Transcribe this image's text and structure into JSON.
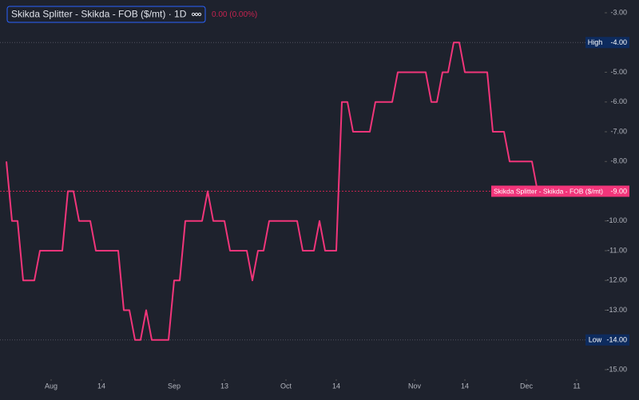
{
  "chart_data": {
    "type": "line",
    "title": "Skikda Splitter - Skikda - FOB ($/mt) · 1D",
    "change": "0.00 (0.00%)",
    "x": [
      0,
      1,
      2,
      3,
      4,
      5,
      6,
      7,
      8,
      9,
      10,
      11,
      12,
      13,
      14,
      15,
      16,
      17,
      18,
      19,
      20,
      21,
      22,
      23,
      24,
      25,
      26,
      27,
      28,
      29,
      30,
      31,
      32,
      33,
      34,
      35,
      36,
      37,
      38,
      39,
      40,
      41,
      42,
      43,
      44,
      45,
      46,
      47,
      48,
      49,
      50,
      51,
      52,
      53,
      54,
      55,
      56,
      57,
      58,
      59,
      60,
      61,
      62,
      63,
      64,
      65,
      66,
      67,
      68,
      69,
      70,
      71,
      72,
      73,
      74,
      75,
      76,
      77,
      78,
      79,
      80,
      81,
      82,
      83,
      84,
      85,
      86,
      87,
      88,
      89,
      90,
      91,
      92,
      93,
      94,
      95
    ],
    "series": [
      {
        "name": "Skikda Splitter - Skikda - FOB ($/mt)",
        "color": "#f2357a",
        "values": [
          -8,
          -10,
          -10,
          -12,
          -12,
          -12,
          -11,
          -11,
          -11,
          -11,
          -11,
          -9,
          -9,
          -10,
          -10,
          -10,
          -11,
          -11,
          -11,
          -11,
          -11,
          -13,
          -13,
          -14,
          -14,
          -13,
          -14,
          -14,
          -14,
          -14,
          -12,
          -12,
          -10,
          -10,
          -10,
          -10,
          -9,
          -10,
          -10,
          -10,
          -11,
          -11,
          -11,
          -11,
          -12,
          -11,
          -11,
          -10,
          -10,
          -10,
          -10,
          -10,
          -10,
          -11,
          -11,
          -11,
          -10,
          -11,
          -11,
          -11,
          -6,
          -6,
          -7,
          -7,
          -7,
          -7,
          -6,
          -6,
          -6,
          -6,
          -5,
          -5,
          -5,
          -5,
          -5,
          -5,
          -6,
          -6,
          -5,
          -5,
          -4,
          -4,
          -5,
          -5,
          -5,
          -5,
          -5,
          -7,
          -7,
          -7,
          -8,
          -8,
          -8,
          -8,
          -8,
          -9
        ]
      }
    ],
    "xlim": [
      0,
      107
    ],
    "xticks": [
      {
        "value": 8,
        "label": "Aug"
      },
      {
        "value": 17,
        "label": "14"
      },
      {
        "value": 30,
        "label": "Sep"
      },
      {
        "value": 39,
        "label": "13"
      },
      {
        "value": 50,
        "label": "Oct"
      },
      {
        "value": 59,
        "label": "14"
      },
      {
        "value": 73,
        "label": "Nov"
      },
      {
        "value": 82,
        "label": "14"
      },
      {
        "value": 93,
        "label": "Dec"
      },
      {
        "value": 102,
        "label": "11"
      }
    ],
    "ylim": [
      -15,
      -3
    ],
    "yticks": [
      {
        "value": -3,
        "label": "-3.00"
      },
      {
        "value": -5,
        "label": "-5.00"
      },
      {
        "value": -6,
        "label": "-6.00"
      },
      {
        "value": -7,
        "label": "-7.00"
      },
      {
        "value": -8,
        "label": "-8.00"
      },
      {
        "value": -10,
        "label": "-10.00"
      },
      {
        "value": -11,
        "label": "-11.00"
      },
      {
        "value": -12,
        "label": "-12.00"
      },
      {
        "value": -13,
        "label": "-13.00"
      },
      {
        "value": -15,
        "label": "-15.00"
      }
    ],
    "price_lines": [
      {
        "name": "High",
        "value": -4,
        "value_label": "-4.00"
      },
      {
        "name": "Low",
        "value": -14,
        "value_label": "-14.00"
      },
      {
        "name": "Skikda Splitter - Skikda - FOB ($/mt)",
        "value": -9,
        "value_label": "-9.00"
      }
    ]
  }
}
